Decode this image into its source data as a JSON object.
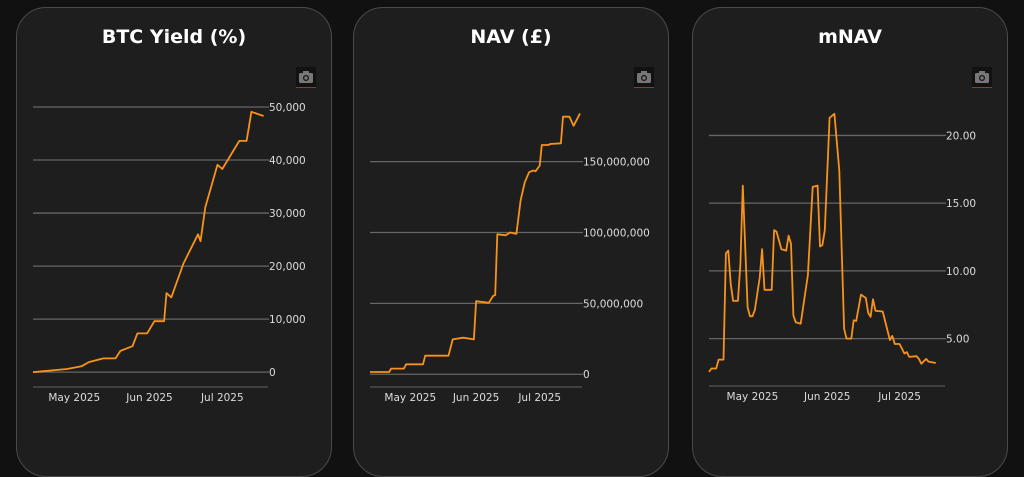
{
  "colors": {
    "line": "#f7931a",
    "grid": "#666666",
    "background": "#1e1e1e"
  },
  "chart_data": [
    {
      "type": "line",
      "title": "BTC Yield (%)",
      "ylim": [
        -2800,
        50000
      ],
      "xlim": [
        "2025-04-14",
        "2025-07-19"
      ],
      "y_ticks": [
        0,
        10000,
        20000,
        30000,
        40000,
        50000
      ],
      "y_tick_labels": [
        "0",
        "10,000",
        "20,000",
        "30,000",
        "40,000",
        "50,000"
      ],
      "x_ticks": [
        "2025-05-01",
        "2025-06-01",
        "2025-07-01"
      ],
      "x_tick_labels": [
        "May 2025",
        "Jun 2025",
        "Jul 2025"
      ],
      "y_axis_side": "right",
      "grid": true,
      "points": [
        [
          "2025-04-14",
          0
        ],
        [
          "2025-04-28",
          600
        ],
        [
          "2025-05-04",
          1100
        ],
        [
          "2025-05-07",
          1900
        ],
        [
          "2025-05-13",
          2600
        ],
        [
          "2025-05-18",
          2600
        ],
        [
          "2025-05-20",
          4000
        ],
        [
          "2025-05-25",
          4900
        ],
        [
          "2025-05-27",
          7300
        ],
        [
          "2025-05-31",
          7300
        ],
        [
          "2025-06-03",
          9600
        ],
        [
          "2025-06-07",
          9600
        ],
        [
          "2025-06-08",
          14900
        ],
        [
          "2025-06-10",
          14100
        ],
        [
          "2025-06-15",
          20500
        ],
        [
          "2025-06-21",
          26000
        ],
        [
          "2025-06-22",
          24700
        ],
        [
          "2025-06-24",
          31100
        ],
        [
          "2025-06-29",
          39100
        ],
        [
          "2025-07-01",
          38300
        ],
        [
          "2025-07-08",
          43600
        ],
        [
          "2025-07-11",
          43600
        ],
        [
          "2025-07-13",
          49100
        ],
        [
          "2025-07-18",
          48300
        ]
      ]
    },
    {
      "type": "line",
      "title": "NAV (£)",
      "ylim": [
        -9000000,
        185000000
      ],
      "xlim": [
        "2025-04-12",
        "2025-07-20"
      ],
      "y_ticks": [
        0,
        50000000,
        100000000,
        150000000
      ],
      "y_tick_labels": [
        "0",
        "50,000,000",
        "100,000,000",
        "150,000,000"
      ],
      "x_ticks": [
        "2025-05-01",
        "2025-06-01",
        "2025-07-01"
      ],
      "x_tick_labels": [
        "May 2025",
        "Jun 2025",
        "Jul 2025"
      ],
      "y_axis_side": "right",
      "grid": true,
      "points": [
        [
          "2025-04-12",
          1600000
        ],
        [
          "2025-04-21",
          1600000
        ],
        [
          "2025-04-22",
          4000000
        ],
        [
          "2025-04-28",
          4000000
        ],
        [
          "2025-04-29",
          7000000
        ],
        [
          "2025-05-07",
          7000000
        ],
        [
          "2025-05-08",
          13100000
        ],
        [
          "2025-05-19",
          13100000
        ],
        [
          "2025-05-21",
          24600000
        ],
        [
          "2025-05-26",
          25800000
        ],
        [
          "2025-05-31",
          24600000
        ],
        [
          "2025-06-01",
          51600000
        ],
        [
          "2025-06-07",
          50400000
        ],
        [
          "2025-06-09",
          55100000
        ],
        [
          "2025-06-10",
          55800000
        ],
        [
          "2025-06-11",
          98700000
        ],
        [
          "2025-06-15",
          98000000
        ],
        [
          "2025-06-17",
          100000000
        ],
        [
          "2025-06-20",
          99000000
        ],
        [
          "2025-06-22",
          122600000
        ],
        [
          "2025-06-24",
          135500000
        ],
        [
          "2025-06-26",
          142500000
        ],
        [
          "2025-06-28",
          143700000
        ],
        [
          "2025-06-29",
          143200000
        ],
        [
          "2025-07-01",
          147200000
        ],
        [
          "2025-07-02",
          161700000
        ],
        [
          "2025-07-05",
          161700000
        ],
        [
          "2025-07-06",
          162400000
        ],
        [
          "2025-07-11",
          162900000
        ],
        [
          "2025-07-12",
          181700000
        ],
        [
          "2025-07-15",
          181700000
        ],
        [
          "2025-07-17",
          175300000
        ],
        [
          "2025-07-20",
          184000000
        ]
      ]
    },
    {
      "type": "line",
      "title": "mNAV",
      "ylim": [
        1.5,
        22.1
      ],
      "xlim": [
        "2025-04-13",
        "2025-07-19"
      ],
      "y_ticks": [
        5,
        10,
        15,
        20
      ],
      "y_tick_labels": [
        "5.00",
        "10.00",
        "15.00",
        "20.00"
      ],
      "x_ticks": [
        "2025-05-01",
        "2025-06-01",
        "2025-07-01"
      ],
      "x_tick_labels": [
        "May 2025",
        "Jun 2025",
        "Jul 2025"
      ],
      "y_axis_side": "right",
      "grid": true,
      "points": [
        [
          "2025-04-13",
          2.54
        ],
        [
          "2025-04-14",
          2.79
        ],
        [
          "2025-04-16",
          2.79
        ],
        [
          "2025-04-17",
          3.45
        ],
        [
          "2025-04-19",
          3.45
        ],
        [
          "2025-04-20",
          11.3
        ],
        [
          "2025-04-21",
          11.5
        ],
        [
          "2025-04-22",
          9.06
        ],
        [
          "2025-04-23",
          7.78
        ],
        [
          "2025-04-25",
          7.78
        ],
        [
          "2025-04-26",
          10.5
        ],
        [
          "2025-04-27",
          16.3
        ],
        [
          "2025-04-29",
          7.3
        ],
        [
          "2025-04-30",
          6.65
        ],
        [
          "2025-05-01",
          6.65
        ],
        [
          "2025-05-02",
          7.1
        ],
        [
          "2025-05-04",
          9.5
        ],
        [
          "2025-05-05",
          11.6
        ],
        [
          "2025-05-06",
          8.6
        ],
        [
          "2025-05-09",
          8.6
        ],
        [
          "2025-05-10",
          13.0
        ],
        [
          "2025-05-11",
          12.9
        ],
        [
          "2025-05-13",
          11.6
        ],
        [
          "2025-05-15",
          11.5
        ],
        [
          "2025-05-16",
          12.6
        ],
        [
          "2025-05-17",
          12.0
        ],
        [
          "2025-05-18",
          6.7
        ],
        [
          "2025-05-19",
          6.2
        ],
        [
          "2025-05-21",
          6.1
        ],
        [
          "2025-05-24",
          9.7
        ],
        [
          "2025-05-26",
          16.2
        ],
        [
          "2025-05-28",
          16.3
        ],
        [
          "2025-05-29",
          11.8
        ],
        [
          "2025-05-30",
          11.9
        ],
        [
          "2025-05-31",
          13.0
        ],
        [
          "2025-06-02",
          21.3
        ],
        [
          "2025-06-04",
          21.6
        ],
        [
          "2025-06-06",
          17.4
        ],
        [
          "2025-06-08",
          5.74
        ],
        [
          "2025-06-09",
          5.0
        ],
        [
          "2025-06-11",
          5.0
        ],
        [
          "2025-06-12",
          6.35
        ],
        [
          "2025-06-13",
          6.3
        ],
        [
          "2025-06-15",
          8.25
        ],
        [
          "2025-06-17",
          8.0
        ],
        [
          "2025-06-18",
          6.9
        ],
        [
          "2025-06-19",
          6.6
        ],
        [
          "2025-06-20",
          7.9
        ],
        [
          "2025-06-21",
          7.05
        ],
        [
          "2025-06-24",
          7.0
        ],
        [
          "2025-06-27",
          4.9
        ],
        [
          "2025-06-28",
          5.2
        ],
        [
          "2025-06-29",
          4.6
        ],
        [
          "2025-07-01",
          4.6
        ],
        [
          "2025-07-03",
          3.9
        ],
        [
          "2025-07-04",
          4.0
        ],
        [
          "2025-07-05",
          3.65
        ],
        [
          "2025-07-08",
          3.7
        ],
        [
          "2025-07-09",
          3.5
        ],
        [
          "2025-07-10",
          3.15
        ],
        [
          "2025-07-12",
          3.5
        ],
        [
          "2025-07-13",
          3.3
        ],
        [
          "2025-07-16",
          3.2
        ]
      ]
    }
  ]
}
